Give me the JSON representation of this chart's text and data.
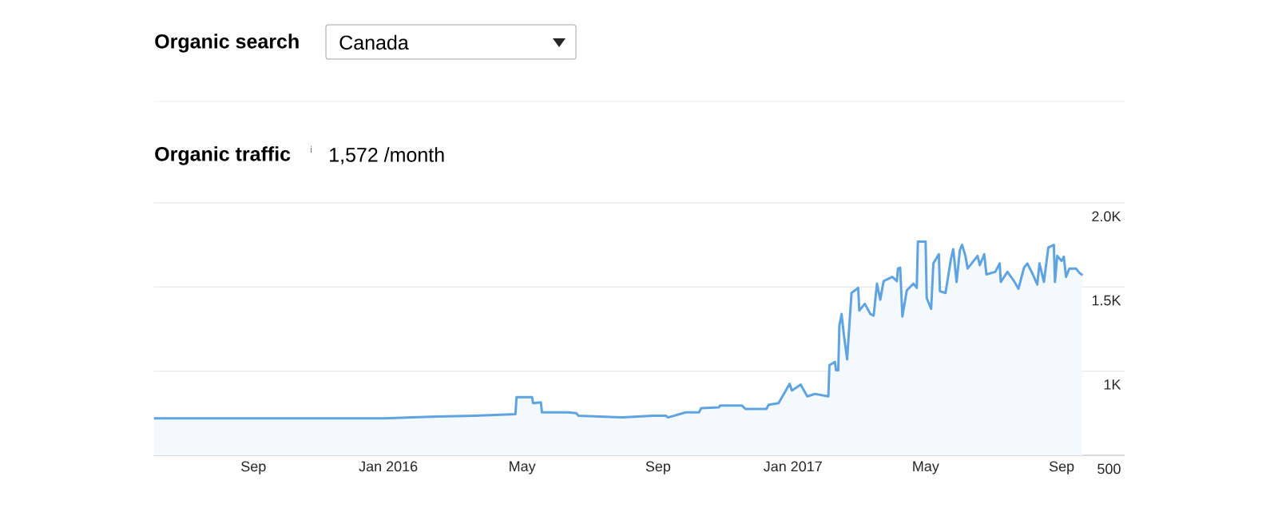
{
  "chart_data": {
    "type": "area",
    "title": "Organic traffic",
    "subtitle": "1,572 /month",
    "annotations": [
      "Organic search",
      "Canada",
      "i"
    ],
    "x": [
      "2015-06-03",
      "2015-12-28",
      "2016-02-14",
      "2016-03-19",
      "2016-04-25",
      "2016-04-26",
      "2016-05-10",
      "2016-05-11",
      "2016-05-18",
      "2016-05-19",
      "2016-06-11",
      "2016-06-19",
      "2016-06-21",
      "2016-07-31",
      "2016-08-27",
      "2016-09-08",
      "2016-09-10",
      "2016-09-26",
      "2016-10-08",
      "2016-10-10",
      "2016-10-26",
      "2016-10-27",
      "2016-11-16",
      "2016-11-19",
      "2016-12-08",
      "2016-12-10",
      "2016-12-19",
      "2016-12-29",
      "2016-12-31",
      "2017-01-08",
      "2017-01-14",
      "2017-01-21",
      "2017-02-02",
      "2017-02-03",
      "2017-02-08",
      "2017-02-09",
      "2017-02-11",
      "2017-02-12",
      "2017-02-14",
      "2017-02-16",
      "2017-02-19",
      "2017-02-21",
      "2017-02-23",
      "2017-03-01",
      "2017-03-02",
      "2017-03-07",
      "2017-03-12",
      "2017-03-15",
      "2017-03-18",
      "2017-03-21",
      "2017-03-24",
      "2017-04-01",
      "2017-04-05",
      "2017-04-06",
      "2017-04-08",
      "2017-04-10",
      "2017-04-14",
      "2017-04-20",
      "2017-04-23",
      "2017-04-24",
      "2017-05-01",
      "2017-05-02",
      "2017-05-06",
      "2017-05-08",
      "2017-05-13",
      "2017-05-14",
      "2017-05-19",
      "2017-05-24",
      "2017-05-26",
      "2017-05-29",
      "2017-06-01",
      "2017-06-03",
      "2017-06-06",
      "2017-06-08",
      "2017-06-17",
      "2017-06-19",
      "2017-06-23",
      "2017-06-25",
      "2017-07-03",
      "2017-07-07",
      "2017-07-08",
      "2017-07-14",
      "2017-07-20",
      "2017-07-24",
      "2017-07-29",
      "2017-08-01",
      "2017-08-06",
      "2017-08-10",
      "2017-08-12",
      "2017-08-16",
      "2017-08-20",
      "2017-08-25",
      "2017-08-26",
      "2017-08-28",
      "2017-09-01",
      "2017-09-03",
      "2017-09-05",
      "2017-09-08",
      "2017-09-14",
      "2017-09-17",
      "2017-09-20"
    ],
    "series": [
      {
        "color": "#5fa3e0",
        "values": [
          720,
          720,
          730,
          735,
          745,
          845,
          845,
          810,
          815,
          755,
          755,
          750,
          735,
          725,
          735,
          735,
          725,
          755,
          755,
          780,
          785,
          795,
          795,
          775,
          775,
          800,
          810,
          925,
          885,
          920,
          850,
          865,
          850,
          1035,
          1055,
          1005,
          1005,
          1270,
          1340,
          1220,
          1070,
          1270,
          1465,
          1495,
          1360,
          1400,
          1340,
          1330,
          1520,
          1425,
          1535,
          1560,
          1535,
          1610,
          1615,
          1325,
          1480,
          1520,
          1495,
          1770,
          1770,
          1435,
          1370,
          1640,
          1695,
          1475,
          1465,
          1670,
          1725,
          1530,
          1720,
          1750,
          1685,
          1610,
          1685,
          1630,
          1695,
          1575,
          1590,
          1640,
          1530,
          1590,
          1535,
          1490,
          1615,
          1640,
          1575,
          1515,
          1640,
          1530,
          1735,
          1750,
          1530,
          1685,
          1655,
          1680,
          1560,
          1610,
          1610,
          1585,
          1570
        ]
      }
    ],
    "xlim": [
      "2015-06-03",
      "2017-10-28"
    ],
    "xticks": [
      {
        "value": "2015-09-01",
        "label": "Sep"
      },
      {
        "value": "2016-01-01",
        "label": "Jan 2016"
      },
      {
        "value": "2016-05-01",
        "label": "May"
      },
      {
        "value": "2016-09-01",
        "label": "Sep"
      },
      {
        "value": "2017-01-01",
        "label": "Jan 2017"
      },
      {
        "value": "2017-05-01",
        "label": "May"
      },
      {
        "value": "2017-09-01",
        "label": "Sep"
      }
    ],
    "ylim": [
      500,
      2000
    ],
    "yticks": [
      500,
      {
        "value": 1000,
        "label": "1K"
      },
      {
        "value": 1500,
        "label": "1.5K"
      },
      {
        "value": 2000,
        "label": "2.0K"
      }
    ],
    "grid": "y"
  }
}
